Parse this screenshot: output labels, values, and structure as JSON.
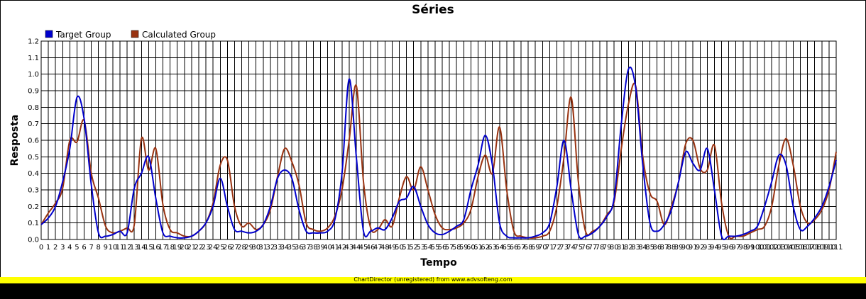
{
  "footer": {
    "text": "ChartDirector (unregistered) from www.advsofteng.com"
  },
  "chart_data": {
    "type": "line",
    "title": "Séries",
    "xlabel": "Tempo",
    "ylabel": "Resposta",
    "ylim": [
      0,
      1.2
    ],
    "yticks": [
      "0.0",
      "0.1",
      "0.2",
      "0.3",
      "0.4",
      "0.5",
      "0.6",
      "0.7",
      "0.8",
      "0.9",
      "1.0",
      "1.1",
      "1.2"
    ],
    "xlim": [
      0,
      111
    ],
    "grid": true,
    "legend_position": "top-left",
    "x": [
      0,
      1,
      2,
      3,
      4,
      5,
      6,
      7,
      8,
      9,
      10,
      11,
      12,
      13,
      14,
      15,
      16,
      17,
      18,
      19,
      20,
      21,
      22,
      23,
      24,
      25,
      26,
      27,
      28,
      29,
      30,
      31,
      32,
      33,
      34,
      35,
      36,
      37,
      38,
      39,
      40,
      41,
      42,
      43,
      44,
      45,
      46,
      47,
      48,
      49,
      50,
      51,
      52,
      53,
      54,
      55,
      56,
      57,
      58,
      59,
      60,
      61,
      62,
      63,
      64,
      65,
      66,
      67,
      68,
      69,
      70,
      71,
      72,
      73,
      74,
      75,
      76,
      77,
      78,
      79,
      80,
      81,
      82,
      83,
      84,
      85,
      86,
      87,
      88,
      89,
      90,
      91,
      92,
      93,
      94,
      95,
      96,
      97,
      98,
      99,
      100,
      101,
      102,
      103,
      104,
      105,
      106,
      107,
      108,
      109,
      110,
      111
    ],
    "series": [
      {
        "name": "Target Group",
        "color": "#0000cc",
        "values": [
          0.09,
          0.13,
          0.2,
          0.35,
          0.55,
          0.86,
          0.73,
          0.33,
          0.04,
          0.02,
          0.03,
          0.05,
          0.04,
          0.31,
          0.4,
          0.5,
          0.25,
          0.04,
          0.02,
          0.01,
          0.01,
          0.02,
          0.05,
          0.1,
          0.2,
          0.37,
          0.2,
          0.06,
          0.05,
          0.04,
          0.05,
          0.09,
          0.2,
          0.37,
          0.42,
          0.37,
          0.18,
          0.05,
          0.04,
          0.04,
          0.05,
          0.12,
          0.4,
          0.97,
          0.5,
          0.05,
          0.05,
          0.07,
          0.06,
          0.13,
          0.23,
          0.25,
          0.32,
          0.2,
          0.09,
          0.04,
          0.03,
          0.05,
          0.08,
          0.12,
          0.3,
          0.45,
          0.63,
          0.45,
          0.1,
          0.02,
          0.01,
          0.01,
          0.01,
          0.02,
          0.04,
          0.1,
          0.32,
          0.6,
          0.3,
          0.03,
          0.02,
          0.04,
          0.08,
          0.14,
          0.25,
          0.7,
          1.03,
          0.92,
          0.45,
          0.1,
          0.05,
          0.09,
          0.18,
          0.35,
          0.53,
          0.46,
          0.42,
          0.55,
          0.3,
          0.02,
          0.02,
          0.02,
          0.03,
          0.05,
          0.08,
          0.2,
          0.35,
          0.51,
          0.45,
          0.2,
          0.06,
          0.08,
          0.13,
          0.2,
          0.32,
          0.48
        ]
      },
      {
        "name": "Calculated Group",
        "color": "#993311",
        "values": [
          0.09,
          0.16,
          0.22,
          0.31,
          0.6,
          0.59,
          0.72,
          0.4,
          0.25,
          0.08,
          0.04,
          0.05,
          0.07,
          0.09,
          0.61,
          0.42,
          0.55,
          0.21,
          0.06,
          0.04,
          0.02,
          0.02,
          0.05,
          0.1,
          0.22,
          0.45,
          0.48,
          0.2,
          0.08,
          0.1,
          0.06,
          0.09,
          0.18,
          0.38,
          0.55,
          0.47,
          0.33,
          0.1,
          0.06,
          0.05,
          0.07,
          0.14,
          0.3,
          0.6,
          0.93,
          0.35,
          0.07,
          0.06,
          0.12,
          0.08,
          0.25,
          0.38,
          0.3,
          0.44,
          0.3,
          0.15,
          0.07,
          0.06,
          0.07,
          0.1,
          0.18,
          0.38,
          0.51,
          0.4,
          0.68,
          0.3,
          0.05,
          0.02,
          0.01,
          0.01,
          0.02,
          0.05,
          0.2,
          0.5,
          0.86,
          0.35,
          0.05,
          0.05,
          0.08,
          0.15,
          0.23,
          0.55,
          0.82,
          0.93,
          0.5,
          0.28,
          0.23,
          0.09,
          0.2,
          0.35,
          0.58,
          0.6,
          0.43,
          0.42,
          0.57,
          0.22,
          0.02,
          0.02,
          0.02,
          0.04,
          0.06,
          0.08,
          0.2,
          0.45,
          0.61,
          0.45,
          0.2,
          0.1,
          0.12,
          0.18,
          0.3,
          0.53
        ]
      }
    ]
  }
}
